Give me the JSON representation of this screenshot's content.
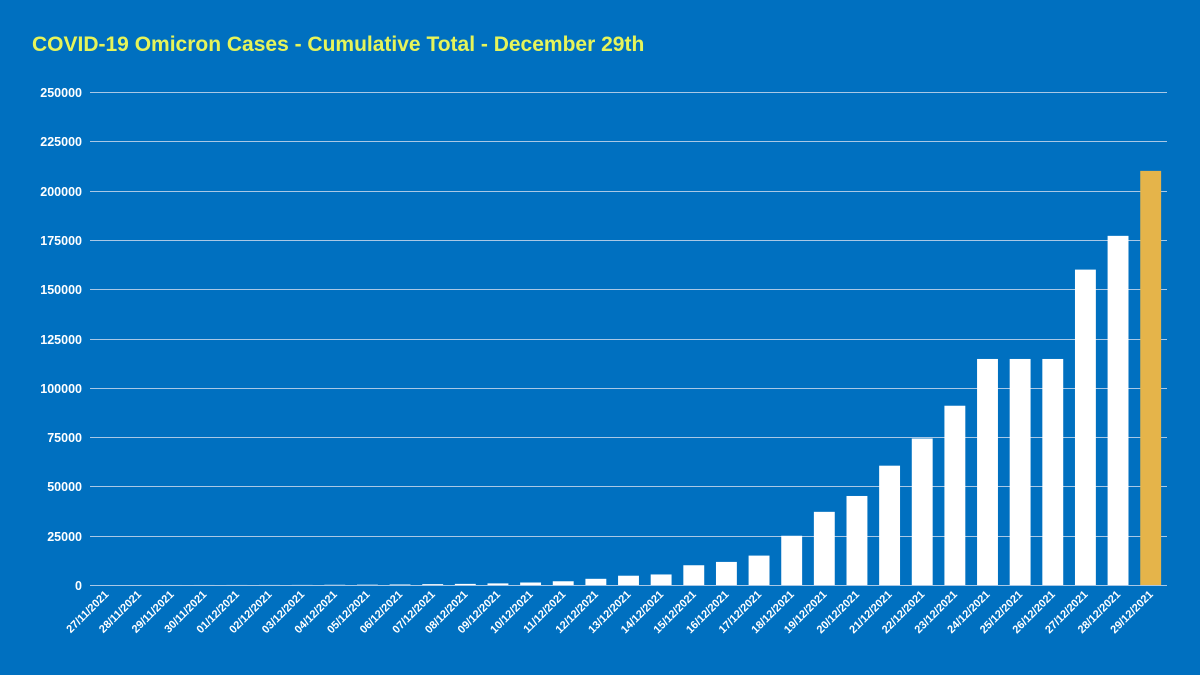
{
  "chart_data": {
    "type": "bar",
    "title": "COVID-19 Omicron Cases - Cumulative Total - December 29th",
    "xlabel": "",
    "ylabel": "",
    "ylim": [
      0,
      250000
    ],
    "yticks": [
      0,
      25000,
      50000,
      75000,
      100000,
      125000,
      150000,
      175000,
      200000,
      225000,
      250000
    ],
    "grid": true,
    "legend": "none",
    "categories": [
      "27/11/2021",
      "28/11/2021",
      "29/11/2021",
      "30/11/2021",
      "01/12/2021",
      "02/12/2021",
      "03/12/2021",
      "04/12/2021",
      "05/12/2021",
      "06/12/2021",
      "07/12/2021",
      "08/12/2021",
      "09/12/2021",
      "10/12/2021",
      "11/12/2021",
      "12/12/2021",
      "13/12/2021",
      "14/12/2021",
      "15/12/2021",
      "16/12/2021",
      "17/12/2021",
      "18/12/2021",
      "19/12/2021",
      "20/12/2021",
      "21/12/2021",
      "22/12/2021",
      "23/12/2021",
      "24/12/2021",
      "25/12/2021",
      "26/12/2021",
      "27/12/2021",
      "28/12/2021",
      "29/12/2021"
    ],
    "values": [
      2,
      5,
      9,
      13,
      20,
      32,
      42,
      104,
      160,
      261,
      437,
      568,
      817,
      1265,
      1898,
      3137,
      4713,
      5346,
      10017,
      11708,
      14909,
      24968,
      37101,
      45145,
      60508,
      74302,
      90906,
      114625,
      114625,
      114625,
      159932,
      177054,
      210000
    ],
    "colors": {
      "background": "#0070C0",
      "bar": "#FFFFFF",
      "highlight_bar": "#E5B44A",
      "grid": "#A9C8E6",
      "title": "#E6F45A",
      "text": "#FFFFFF"
    },
    "highlight_index": 32
  }
}
